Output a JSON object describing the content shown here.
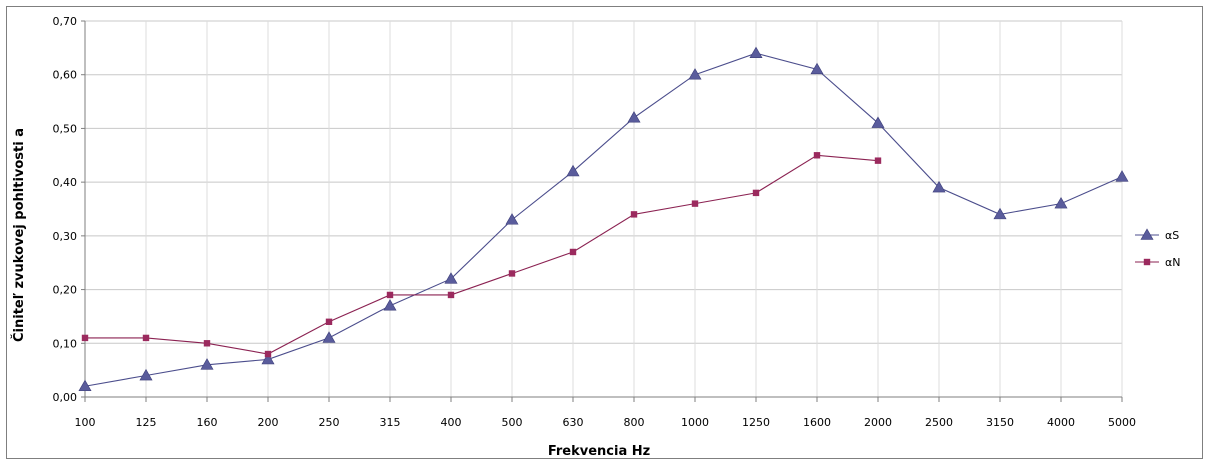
{
  "chart_data": {
    "type": "line",
    "title": "",
    "xlabel": "Frekvencia Hz",
    "ylabel": "Činiteľ zvukovej pohltivosti a",
    "categories": [
      "100",
      "125",
      "160",
      "200",
      "250",
      "315",
      "400",
      "500",
      "630",
      "800",
      "1000",
      "1250",
      "1600",
      "2000",
      "2500",
      "3150",
      "4000",
      "5000"
    ],
    "ylim": [
      0,
      0.7
    ],
    "ytick_step": 0.1,
    "ytick_labels": [
      "0,00",
      "0,10",
      "0,20",
      "0,30",
      "0,40",
      "0,50",
      "0,60",
      "0,70"
    ],
    "grid": true,
    "legend_position": "right",
    "series": [
      {
        "name": "αS",
        "marker": "triangle",
        "color": "#4b4d8c",
        "marker_color": "#5a5c9c",
        "values": [
          0.02,
          0.04,
          0.06,
          0.07,
          0.11,
          0.17,
          0.22,
          0.33,
          0.42,
          0.52,
          0.6,
          0.64,
          0.61,
          0.51,
          0.39,
          0.34,
          0.36,
          0.41
        ]
      },
      {
        "name": "αN",
        "marker": "square",
        "color": "#8b2252",
        "marker_color": "#9b2a5e",
        "values": [
          0.11,
          0.11,
          0.1,
          0.08,
          0.14,
          0.19,
          0.19,
          0.23,
          0.27,
          0.34,
          0.36,
          0.38,
          0.45,
          0.44,
          null,
          null,
          null,
          null
        ]
      }
    ]
  }
}
